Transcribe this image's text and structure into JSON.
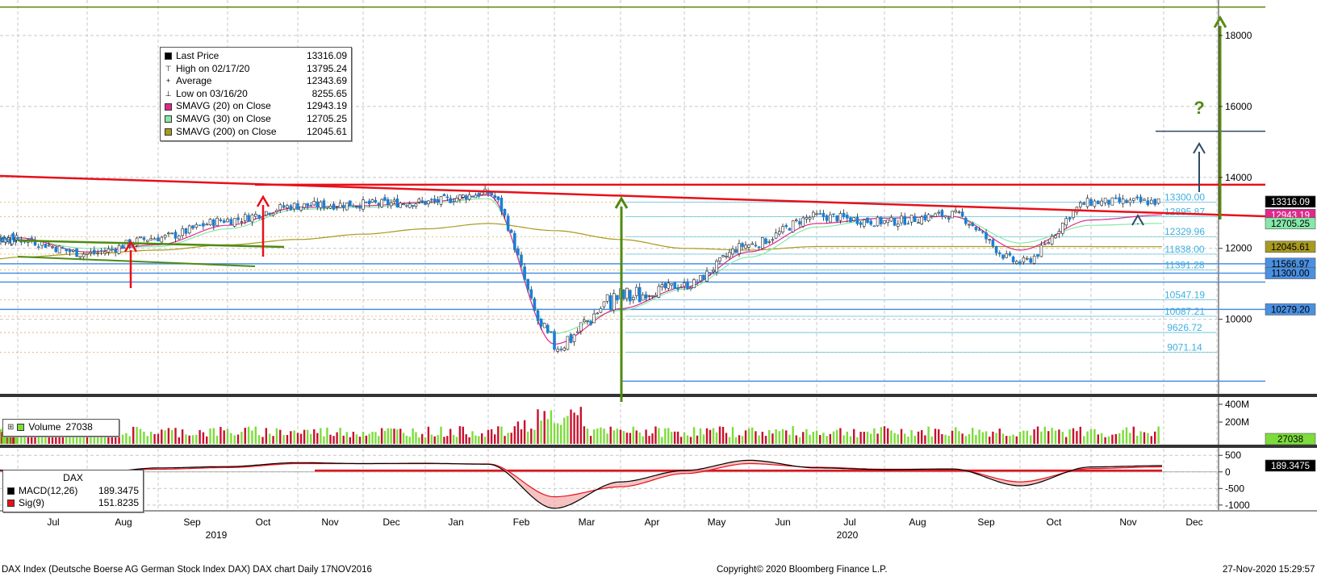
{
  "colors": {
    "price_up": "#1a7fd6",
    "price_down": "#1f3c8a",
    "sma20": "#e0288c",
    "sma30": "#86e8a8",
    "sma200": "#a89a20",
    "trendline": "#e8101a",
    "target_arrow": "#5a8a10",
    "target_arrow_dark": "#2e4a66",
    "fib_line": "#1e90ff",
    "support_line": "#4a90e2",
    "volume_up": "#7ddc3c",
    "volume_down": "#c8102e",
    "macd": "#000000",
    "signal": "#e8101a",
    "grid": "#c8c8c8"
  },
  "legend_main": {
    "items": [
      {
        "icon": "square-icon",
        "label": "Last Price",
        "value": "13316.09",
        "color": "#000000"
      },
      {
        "icon": "high-marker-icon",
        "label": "High on 02/17/20",
        "value": "13795.24",
        "color": ""
      },
      {
        "icon": "average-marker-icon",
        "label": "Average",
        "value": "12343.69",
        "color": ""
      },
      {
        "icon": "low-marker-icon",
        "label": "Low on 03/16/20",
        "value": "8255.65",
        "color": ""
      },
      {
        "icon": "square-icon",
        "label": "SMAVG (20)  on Close",
        "value": "12943.19",
        "color": "#e0288c"
      },
      {
        "icon": "square-icon",
        "label": "SMAVG (30)  on Close",
        "value": "12705.25",
        "color": "#86e8a8"
      },
      {
        "icon": "square-icon",
        "label": "SMAVG (200)  on Close",
        "value": "12045.61",
        "color": "#a89a20"
      }
    ]
  },
  "legend_volume": {
    "label": "Volume",
    "value": "27038"
  },
  "legend_macd": {
    "title": "DAX",
    "items": [
      {
        "label": "MACD(12,26)",
        "value": "189.3475",
        "color": "#000000"
      },
      {
        "label": "Sig(9)",
        "value": "151.8235",
        "color": "#e8101a"
      }
    ]
  },
  "footer": {
    "left": "DAX Index (Deutsche Boerse AG German Stock Index DAX) DAX chart  Daily 17NOV2016",
    "center": "Copyright© 2020 Bloomberg Finance L.P.",
    "right": "27-Nov-2020 15:29:57"
  },
  "chart_data": [
    {
      "type": "line",
      "panel": "price",
      "title": "",
      "ylim": [
        7900,
        19000
      ],
      "y_ticks": [
        10000,
        12000,
        14000,
        16000,
        18000
      ],
      "y_tick_labels": [
        "10000",
        "12000",
        "14000",
        "16000",
        "18000"
      ],
      "x_labels": [
        "Jul",
        "Aug",
        "Sep",
        "Oct",
        "Nov",
        "Dec",
        "Jan",
        "Feb",
        "Mar",
        "Apr",
        "May",
        "Jun",
        "Jul",
        "Aug",
        "Sep",
        "Oct",
        "Nov",
        "Dec"
      ],
      "year_labels": [
        {
          "label": "2019",
          "month": "Sep"
        },
        {
          "label": "2020",
          "month": "Jun"
        }
      ],
      "grid": true,
      "monthly_x": [
        "2019-06-20",
        "2019-07",
        "2019-08",
        "2019-09",
        "2019-10",
        "2019-11",
        "2019-12",
        "2020-01",
        "2020-02",
        "2020-03",
        "2020-04",
        "2020-05",
        "2020-06",
        "2020-07",
        "2020-08",
        "2020-09",
        "2020-10",
        "2020-11",
        "2020-11-27"
      ],
      "series": [
        {
          "key": "close",
          "values": [
            12300,
            12250,
            11850,
            12300,
            12800,
            13200,
            13250,
            13300,
            13550,
            9300,
            10600,
            10950,
            12100,
            12900,
            12750,
            12950,
            11600,
            13300,
            13316
          ]
        },
        {
          "key": "sma20",
          "values": [
            12250,
            12300,
            11900,
            12100,
            12650,
            13150,
            13200,
            13300,
            13500,
            9300,
            10300,
            10900,
            11900,
            12700,
            12850,
            12900,
            11950,
            12800,
            12943
          ]
        },
        {
          "key": "sma30",
          "values": [
            12200,
            12250,
            12000,
            12050,
            12550,
            13100,
            13150,
            13280,
            13400,
            9600,
            10250,
            10850,
            11750,
            12600,
            12850,
            12900,
            12150,
            12650,
            12705
          ]
        },
        {
          "key": "sma200",
          "values": [
            11700,
            11750,
            11850,
            11950,
            12100,
            12250,
            12400,
            12550,
            12700,
            12500,
            12250,
            12000,
            11950,
            12050,
            12050,
            12050,
            12050,
            12050,
            12046
          ]
        }
      ],
      "current_value_labels": [
        {
          "value": "13316.09",
          "y": 13316,
          "bg": "#000000",
          "fg": "#ffffff"
        },
        {
          "value": "12943.19",
          "y": 12943,
          "bg": "#e0288c",
          "fg": "#ffffff"
        },
        {
          "value": "12705.25",
          "y": 12705,
          "bg": "#86e8a8",
          "fg": "#000000"
        },
        {
          "value": "12045.61",
          "y": 12045,
          "bg": "#a89a20",
          "fg": "#000000"
        },
        {
          "value": "11566.97",
          "y": 11567,
          "bg": "#4a90e2",
          "fg": "#000000"
        },
        {
          "value": "11300.00",
          "y": 11300,
          "bg": "#4a90e2",
          "fg": "#000000"
        },
        {
          "value": "10279.20",
          "y": 10279,
          "bg": "#4a90e2",
          "fg": "#000000"
        }
      ],
      "fib_levels": [
        {
          "label": "13300.00",
          "value": 13300,
          "color": "#1e90ff"
        },
        {
          "label": "12895.87",
          "value": 12896,
          "color": "#1e90ff"
        },
        {
          "label": "12329.96",
          "value": 12330,
          "color": "#1e90ff"
        },
        {
          "label": "11838.00",
          "value": 11838,
          "color": "#1e90ff"
        },
        {
          "label": "11391.28",
          "value": 11391,
          "color": "#1e90ff"
        },
        {
          "label": "10547.19",
          "value": 10547,
          "color": "#1e90ff"
        },
        {
          "label": "10087.21",
          "value": 10087,
          "color": "#1e90ff"
        },
        {
          "label": "9626.72",
          "value": 9627,
          "color": "#1e90ff"
        },
        {
          "label": "9071.14",
          "value": 9071,
          "color": "#1e90ff"
        }
      ],
      "horizontal_lines": [
        {
          "value": 18800,
          "color": "#5a8a10"
        },
        {
          "value": 15300,
          "color": "#2e4a66"
        },
        {
          "value": 13795,
          "color": "#e8101a"
        },
        {
          "value": 11566,
          "color": "#4a90e2"
        },
        {
          "value": 11300,
          "color": "#4a90e2"
        },
        {
          "value": 11050,
          "color": "#4a90e2"
        },
        {
          "value": 10279,
          "color": "#4a90e2"
        },
        {
          "value": 8255,
          "color": "#4a90e2"
        }
      ],
      "annotation_text": "?"
    },
    {
      "type": "bar",
      "panel": "volume",
      "title": "",
      "y_tick_labels": [
        "400M",
        "200M"
      ],
      "current_value_labels": [
        {
          "value": "27038",
          "bg": "#7ddc3c",
          "fg": "#000000"
        }
      ]
    },
    {
      "type": "line",
      "panel": "macd",
      "title": "",
      "ylim": [
        -1150,
        700
      ],
      "y_ticks": [
        500,
        0,
        -500,
        -1000
      ],
      "y_tick_labels": [
        "500",
        "0",
        "-500",
        "-1000"
      ],
      "monthly_x": [
        "2019-06-20",
        "2019-07",
        "2019-08",
        "2019-09",
        "2019-10",
        "2019-11",
        "2019-12",
        "2020-01",
        "2020-02",
        "2020-03",
        "2020-04",
        "2020-05",
        "2020-06",
        "2020-07",
        "2020-08",
        "2020-09",
        "2020-10",
        "2020-11",
        "2020-11-27"
      ],
      "series": [
        {
          "key": "macd",
          "values": [
            40,
            20,
            -60,
            120,
            160,
            280,
            250,
            260,
            230,
            -1100,
            -300,
            40,
            350,
            120,
            70,
            90,
            -420,
            150,
            189
          ]
        },
        {
          "key": "signal",
          "values": [
            60,
            40,
            -20,
            80,
            130,
            250,
            250,
            250,
            240,
            -750,
            -450,
            -50,
            250,
            140,
            80,
            80,
            -300,
            100,
            152
          ]
        }
      ],
      "current_value_labels": [
        {
          "value": "189.3475",
          "y": 189,
          "bg": "#000000",
          "fg": "#ffffff"
        }
      ]
    }
  ]
}
